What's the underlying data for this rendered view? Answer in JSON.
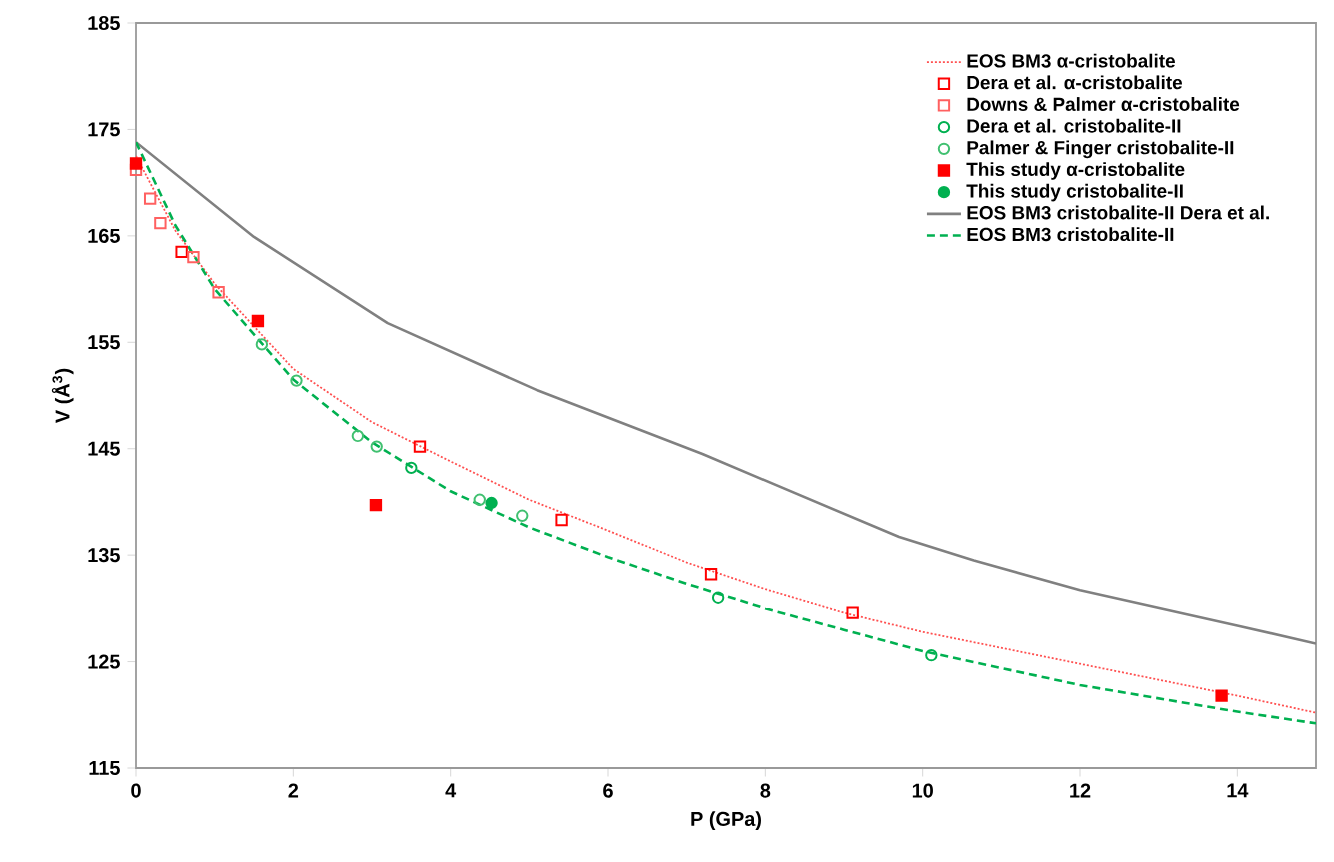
{
  "chart_data": {
    "type": "scatter",
    "xlabel": "P (GPa)",
    "ylabel": "V (Å$^{3}$)",
    "xlim": [
      0,
      15
    ],
    "ylim": [
      115,
      185
    ],
    "xticks": [
      0,
      2,
      4,
      6,
      8,
      10,
      12,
      14
    ],
    "yticks": [
      115,
      125,
      135,
      145,
      155,
      165,
      175,
      185
    ],
    "grid": false,
    "legend": "top right",
    "series": [
      {
        "name": "EOS BM3 α-cristobalite",
        "type": "line",
        "color": "#ff5050",
        "line_style": "dotted",
        "marker": "none",
        "x": [
          0,
          0.5,
          1,
          2,
          3,
          4,
          5,
          6,
          7,
          8,
          9,
          10,
          12,
          13,
          14,
          15
        ],
        "values": [
          172.5,
          165.5,
          160.5,
          152.5,
          147.5,
          143.8,
          140.2,
          137.3,
          134.3,
          131.8,
          129.6,
          127.8,
          124.8,
          123.3,
          121.8,
          120.2
        ]
      },
      {
        "name": "Dera et al. α-cristobalite",
        "color": "#ff0000",
        "marker": "square",
        "x": [
          0.58,
          3.61,
          5.41,
          7.31,
          9.11
        ],
        "values": [
          163.5,
          145.2,
          138.3,
          133.2,
          129.6
        ]
      },
      {
        "name": "Downs & Palmer α-cristobalite",
        "color": "#ff6060",
        "marker": "square",
        "x": [
          0,
          0.18,
          0.31,
          0.73,
          1.05
        ],
        "values": [
          171.2,
          168.5,
          166.2,
          163.0,
          159.7
        ]
      },
      {
        "name": "Dera et al. cristobalite-II",
        "color": "#00b050",
        "marker": "circle",
        "x": [
          3.5,
          7.4,
          10.11
        ],
        "values": [
          143.2,
          131.0,
          125.6
        ]
      },
      {
        "name": "Palmer & Finger cristobalite-II",
        "color": "#40c070",
        "marker": "circle",
        "x": [
          1.6,
          2.04,
          2.82,
          3.06,
          4.37,
          4.91
        ],
        "values": [
          154.8,
          151.4,
          146.2,
          145.2,
          140.2,
          138.7
        ]
      },
      {
        "name": "This study α-cristobalite",
        "color": "#ff0000",
        "marker": "square-filled",
        "x": [
          0,
          1.55,
          3.05,
          13.8
        ],
        "values": [
          171.8,
          157.0,
          139.7,
          121.8
        ]
      },
      {
        "name": "This study cristobalite-II",
        "color": "#00b050",
        "marker": "circle-filled",
        "x": [
          4.52
        ],
        "values": [
          139.9
        ]
      },
      {
        "name": "EOS BM3 cristobalite-II Dera et al.",
        "type": "line",
        "color": "#808080",
        "line_style": "solid",
        "marker": "none",
        "x": [
          0,
          1.5,
          3.2,
          5.1,
          7.2,
          9.7,
          10.65,
          12,
          14,
          15
        ],
        "values": [
          173.8,
          164.9,
          156.8,
          150.5,
          144.5,
          136.7,
          134.5,
          131.7,
          128.4,
          126.7
        ]
      },
      {
        "name": "EOS BM3 cristobalite-II",
        "type": "line",
        "color": "#00b050",
        "line_style": "dashed",
        "marker": "none",
        "x": [
          0,
          0.5,
          1,
          2,
          3,
          4,
          5,
          6,
          7,
          8,
          9,
          10,
          12,
          14,
          15
        ],
        "values": [
          173.8,
          166,
          160,
          151.5,
          145.6,
          141,
          137.6,
          134.8,
          132.3,
          130,
          128,
          126,
          122.8,
          120.3,
          119.2
        ]
      }
    ]
  }
}
